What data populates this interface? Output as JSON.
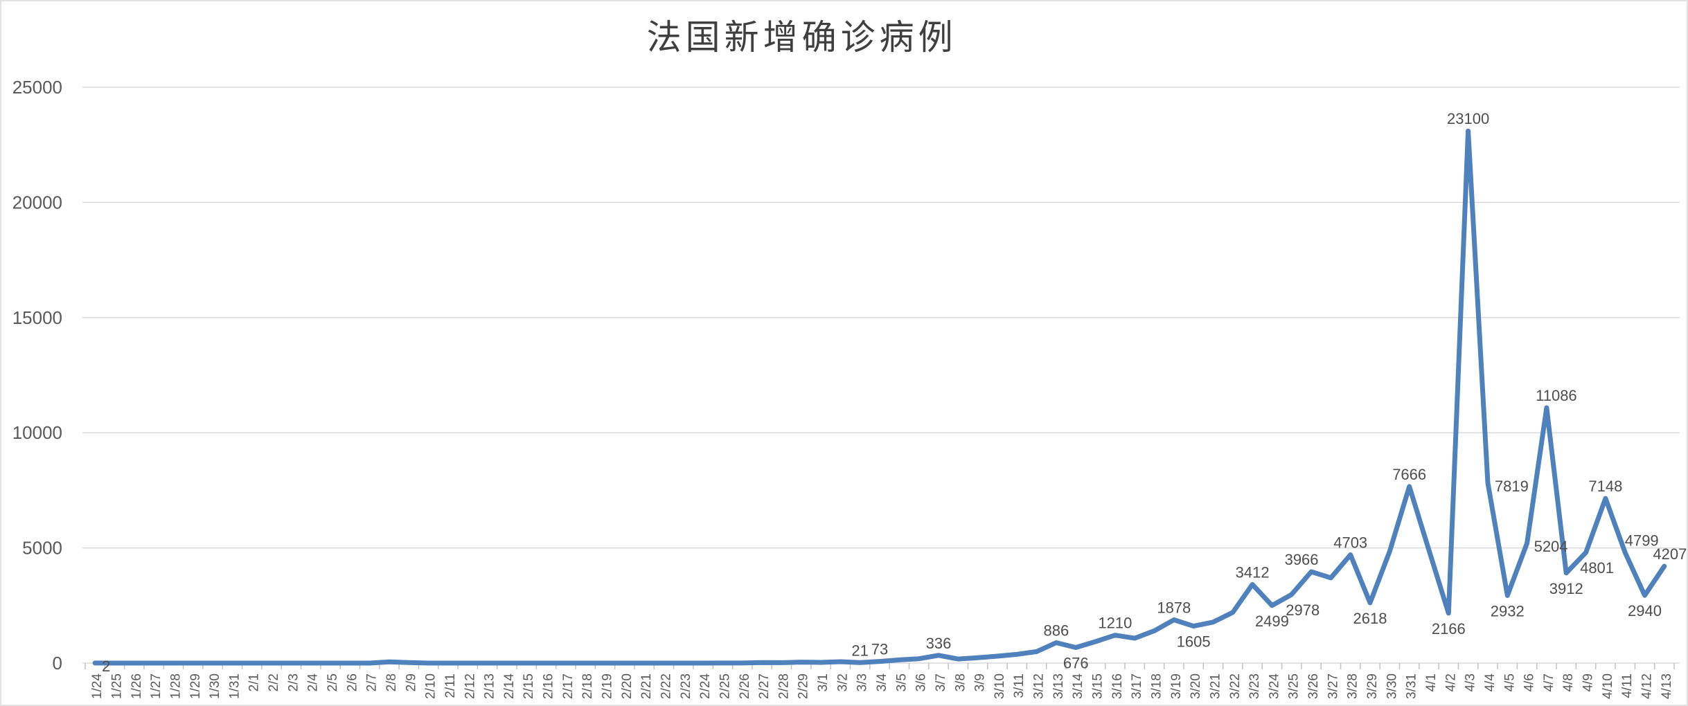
{
  "chart_data": {
    "type": "line",
    "title": "法国新增确诊病例",
    "xlabel": "",
    "ylabel": "",
    "ylim": [
      0,
      25000
    ],
    "yticks": [
      0,
      5000,
      10000,
      15000,
      20000,
      25000
    ],
    "grid": true,
    "legend": "none",
    "x": [
      "1/24",
      "1/25",
      "1/26",
      "1/27",
      "1/28",
      "1/29",
      "1/30",
      "1/31",
      "2/1",
      "2/2",
      "2/3",
      "2/4",
      "2/5",
      "2/6",
      "2/7",
      "2/8",
      "2/9",
      "2/10",
      "2/11",
      "2/12",
      "2/13",
      "2/14",
      "2/15",
      "2/16",
      "2/17",
      "2/18",
      "2/19",
      "2/20",
      "2/21",
      "2/22",
      "2/23",
      "2/24",
      "2/25",
      "2/26",
      "2/27",
      "2/28",
      "2/29",
      "3/1",
      "3/2",
      "3/3",
      "3/4",
      "3/5",
      "3/6",
      "3/7",
      "3/8",
      "3/9",
      "3/10",
      "3/11",
      "3/12",
      "3/13",
      "3/14",
      "3/15",
      "3/16",
      "3/17",
      "3/18",
      "3/19",
      "3/20",
      "3/21",
      "3/22",
      "3/23",
      "3/24",
      "3/25",
      "3/26",
      "3/27",
      "3/28",
      "3/29",
      "3/30",
      "3/31",
      "4/1",
      "4/2",
      "4/3",
      "4/4",
      "4/5",
      "4/6",
      "4/7",
      "4/8",
      "4/9",
      "4/10",
      "4/11",
      "4/12",
      "4/13"
    ],
    "values": [
      2,
      1,
      0,
      0,
      1,
      1,
      1,
      0,
      0,
      0,
      0,
      0,
      0,
      0,
      0,
      50,
      25,
      0,
      0,
      0,
      0,
      0,
      1,
      0,
      0,
      0,
      0,
      0,
      0,
      0,
      0,
      0,
      2,
      4,
      20,
      19,
      43,
      30,
      61,
      21,
      73,
      138,
      190,
      336,
      177,
      230,
      300,
      380,
      500,
      886,
      676,
      930,
      1210,
      1080,
      1400,
      1878,
      1605,
      1780,
      2200,
      3412,
      2499,
      2978,
      3966,
      3700,
      4703,
      2618,
      4850,
      7666,
      4900,
      2166,
      23100,
      7819,
      2932,
      5204,
      11086,
      3912,
      4801,
      7148,
      4799,
      2940,
      4207
    ],
    "annotations": [
      {
        "date": "1/24",
        "text": "2",
        "pos": "right"
      },
      {
        "date": "3/3",
        "text": "21",
        "pos": "above"
      },
      {
        "date": "3/4",
        "text": "73",
        "pos": "above"
      },
      {
        "date": "3/7",
        "text": "336",
        "pos": "above"
      },
      {
        "date": "3/13",
        "text": "886",
        "pos": "above"
      },
      {
        "date": "3/14",
        "text": "676",
        "pos": "below"
      },
      {
        "date": "3/16",
        "text": "1210",
        "pos": "above"
      },
      {
        "date": "3/19",
        "text": "1878",
        "pos": "above"
      },
      {
        "date": "3/20",
        "text": "1605",
        "pos": "below"
      },
      {
        "date": "3/23",
        "text": "3412",
        "pos": "above"
      },
      {
        "date": "3/24",
        "text": "2499",
        "pos": "below"
      },
      {
        "date": "3/25",
        "text": "2978",
        "pos": "below",
        "dx": 16
      },
      {
        "date": "3/26",
        "text": "3966",
        "pos": "above",
        "dx": -14
      },
      {
        "date": "3/28",
        "text": "4703",
        "pos": "above"
      },
      {
        "date": "3/29",
        "text": "2618",
        "pos": "below"
      },
      {
        "date": "3/31",
        "text": "7666",
        "pos": "above"
      },
      {
        "date": "4/2",
        "text": "2166",
        "pos": "below"
      },
      {
        "date": "4/3",
        "text": "23100",
        "pos": "above"
      },
      {
        "date": "4/4",
        "text": "7819",
        "pos": "right"
      },
      {
        "date": "4/5",
        "text": "2932",
        "pos": "below"
      },
      {
        "date": "4/6",
        "text": "5204",
        "pos": "right"
      },
      {
        "date": "4/7",
        "text": "11086",
        "pos": "above",
        "dx": 14
      },
      {
        "date": "4/8",
        "text": "3912",
        "pos": "below"
      },
      {
        "date": "4/9",
        "text": "4801",
        "pos": "below",
        "dx": 16
      },
      {
        "date": "4/10",
        "text": "7148",
        "pos": "above"
      },
      {
        "date": "4/11",
        "text": "4799",
        "pos": "above",
        "dx": 24
      },
      {
        "date": "4/12",
        "text": "2940",
        "pos": "below"
      },
      {
        "date": "4/13",
        "text": "4207",
        "pos": "above",
        "dx": 8
      }
    ],
    "colors": {
      "line": "#4F81BD",
      "grid": "#DADADA",
      "tick": "#C3C3C3",
      "axis_text": "#595959",
      "label_text": "#4D4D4D",
      "title_text": "#3F3F3F",
      "background": "#FFFFFF"
    }
  }
}
